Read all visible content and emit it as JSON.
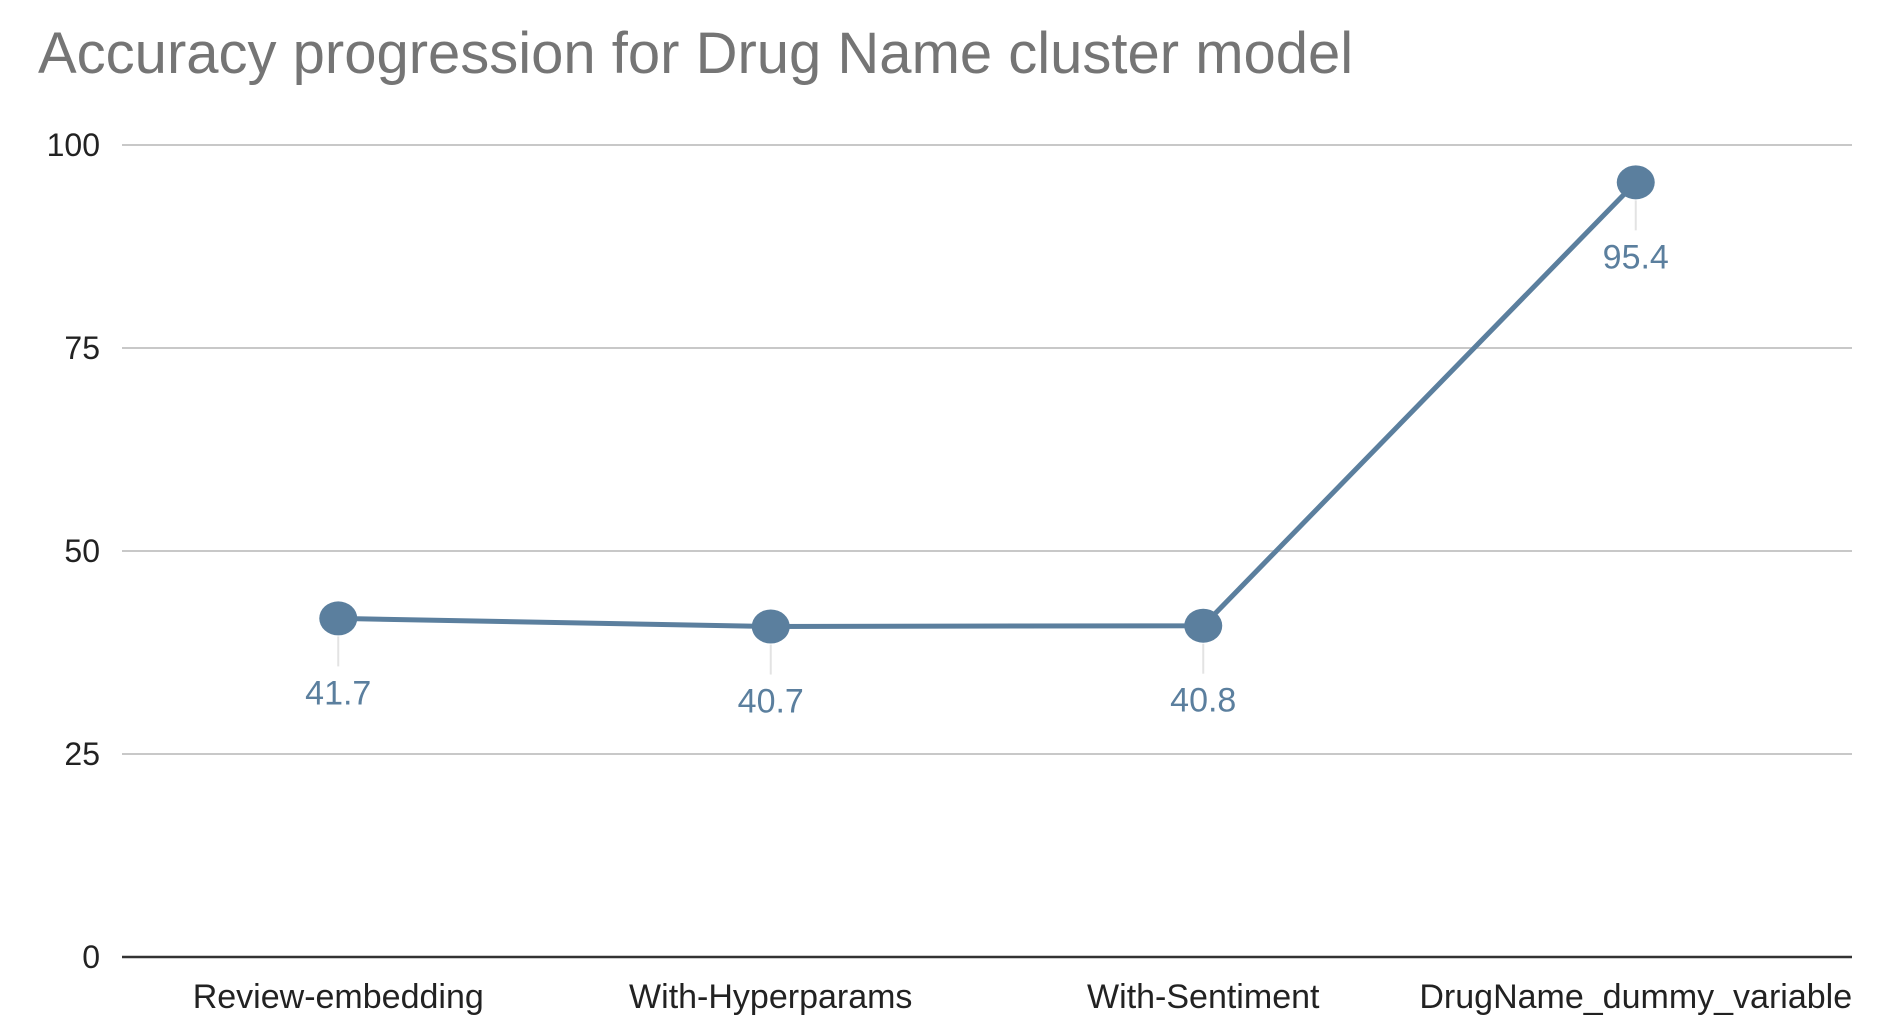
{
  "chart_data": {
    "type": "line",
    "title": "Accuracy progression for Drug Name cluster model",
    "xlabel": "",
    "ylabel": "",
    "categories": [
      "Review-embedding",
      "With-Hyperparams",
      "With-Sentiment",
      "DrugName_dummy_variable"
    ],
    "series": [
      {
        "values": [
          41.7,
          40.7,
          40.8,
          95.4
        ],
        "data_labels": [
          "41.7",
          "40.7",
          "40.8",
          "95.4"
        ],
        "color": "#5b7f9e"
      }
    ],
    "ylim": [
      0,
      100
    ],
    "yticks": [
      0,
      25,
      50,
      75,
      100
    ],
    "ytick_labels": [
      "0",
      "25",
      "50",
      "75",
      "100"
    ],
    "grid": true,
    "legend": "none"
  }
}
